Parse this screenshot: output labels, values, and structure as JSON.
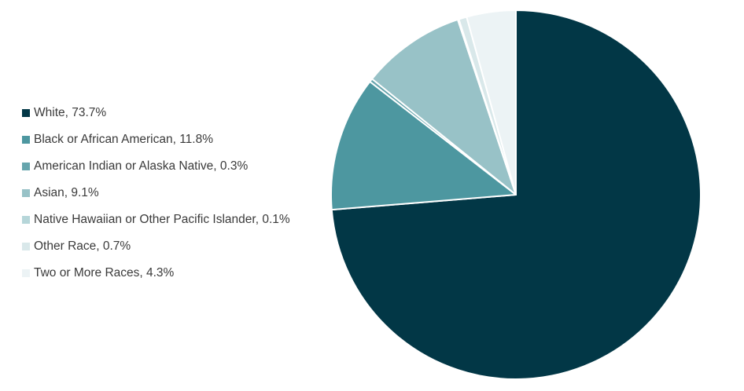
{
  "chart_data": {
    "type": "pie",
    "title": "",
    "start_angle_deg": 0,
    "direction": "clockwise",
    "legend_position": "left",
    "slices": [
      {
        "label": "White",
        "value": 73.7,
        "display": "White, 73.7%",
        "color": "#023746"
      },
      {
        "label": "Black or African American",
        "value": 11.8,
        "display": "Black or African American, 11.8%",
        "color": "#4d97a0"
      },
      {
        "label": "American Indian or Alaska Native",
        "value": 0.3,
        "display": "American Indian or Alaska Native, 0.3%",
        "color": "#66a5ad"
      },
      {
        "label": "Asian",
        "value": 9.1,
        "display": "Asian, 9.1%",
        "color": "#98c2c7"
      },
      {
        "label": "Native Hawaiian or Other Pacific Islander",
        "value": 0.1,
        "display": "Native Hawaiian or Other Pacific Islander, 0.1%",
        "color": "#b6d6d9"
      },
      {
        "label": "Other Race",
        "value": 0.7,
        "display": "Other Race, 0.7%",
        "color": "#d9e8ea"
      },
      {
        "label": "Two or More Races",
        "value": 4.3,
        "display": "Two or More Races, 4.3%",
        "color": "#ecf3f5"
      }
    ]
  }
}
